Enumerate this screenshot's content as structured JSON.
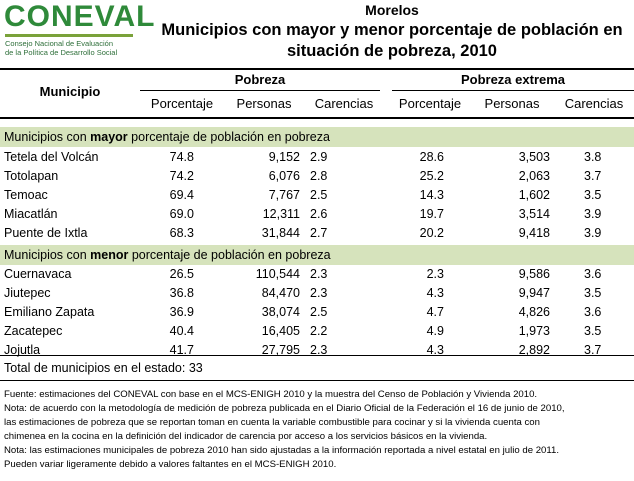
{
  "logo": {
    "word": "CONEVAL",
    "subtitle_line1": "Consejo Nacional de Evaluación",
    "subtitle_line2": "de la Política de Desarrollo Social"
  },
  "title": {
    "state": "Morelos",
    "line1": "Municipios con mayor y menor porcentaje de población en",
    "line2": "situación de pobreza, 2010"
  },
  "header": {
    "municipio": "Municipio",
    "group1": "Pobreza",
    "group2": "Pobreza extrema",
    "cols": [
      "Porcentaje",
      "Personas",
      "Carencias",
      "Porcentaje",
      "Personas",
      "Carencias"
    ]
  },
  "section_mayor": {
    "pre": "Municipios con ",
    "bold": "mayor",
    "post": " porcentaje de población en pobreza",
    "rows": [
      {
        "name": "Tetela del Volcán",
        "p1": "74.8",
        "n1": "9,152",
        "k1": "2.9",
        "p2": "28.6",
        "n2": "3,503",
        "k2": "3.8"
      },
      {
        "name": "Totolapan",
        "p1": "74.2",
        "n1": "6,076",
        "k1": "2.8",
        "p2": "25.2",
        "n2": "2,063",
        "k2": "3.7"
      },
      {
        "name": "Temoac",
        "p1": "69.4",
        "n1": "7,767",
        "k1": "2.5",
        "p2": "14.3",
        "n2": "1,602",
        "k2": "3.5"
      },
      {
        "name": "Miacatlán",
        "p1": "69.0",
        "n1": "12,311",
        "k1": "2.6",
        "p2": "19.7",
        "n2": "3,514",
        "k2": "3.9"
      },
      {
        "name": "Puente de Ixtla",
        "p1": "68.3",
        "n1": "31,844",
        "k1": "2.7",
        "p2": "20.2",
        "n2": "9,418",
        "k2": "3.9"
      }
    ]
  },
  "section_menor": {
    "pre": "Municipios con ",
    "bold": "menor",
    "post": " porcentaje de población en pobreza",
    "rows": [
      {
        "name": "Cuernavaca",
        "p1": "26.5",
        "n1": "110,544",
        "k1": "2.3",
        "p2": "2.3",
        "n2": "9,586",
        "k2": "3.6"
      },
      {
        "name": "Jiutepec",
        "p1": "36.8",
        "n1": "84,470",
        "k1": "2.3",
        "p2": "4.3",
        "n2": "9,947",
        "k2": "3.5"
      },
      {
        "name": "Emiliano Zapata",
        "p1": "36.9",
        "n1": "38,074",
        "k1": "2.5",
        "p2": "4.7",
        "n2": "4,826",
        "k2": "3.6"
      },
      {
        "name": "Zacatepec",
        "p1": "40.4",
        "n1": "16,405",
        "k1": "2.2",
        "p2": "4.9",
        "n2": "1,973",
        "k2": "3.5"
      },
      {
        "name": "Jojutla",
        "p1": "41.7",
        "n1": "27,795",
        "k1": "2.3",
        "p2": "4.3",
        "n2": "2,892",
        "k2": "3.7"
      }
    ]
  },
  "total": "Total de municipios en el estado: 33",
  "notes": [
    "Fuente: estimaciones del CONEVAL con base en el MCS-ENIGH 2010 y la muestra del Censo de Población y Vivienda 2010.",
    "Nota: de acuerdo con la metodología de medición de pobreza publicada en el Diario Oficial de la Federación el 16 de junio de 2010,",
    "las estimaciones de pobreza que se reportan toman en cuenta la variable combustible para cocinar y si la vivienda cuenta con",
    "chimenea en la cocina en la definición del indicador de carencia por acceso a los servicios básicos en la vivienda.",
    "Nota: las estimaciones municipales de pobreza 2010 han sido ajustadas a la información reportada a nivel estatal en julio de 2011.",
    "Pueden variar ligeramente debido a valores faltantes en el MCS-ENIGH 2010."
  ],
  "colors": {
    "logo_green": "#2f8a3a",
    "band_bg": "#d6e3bc"
  }
}
